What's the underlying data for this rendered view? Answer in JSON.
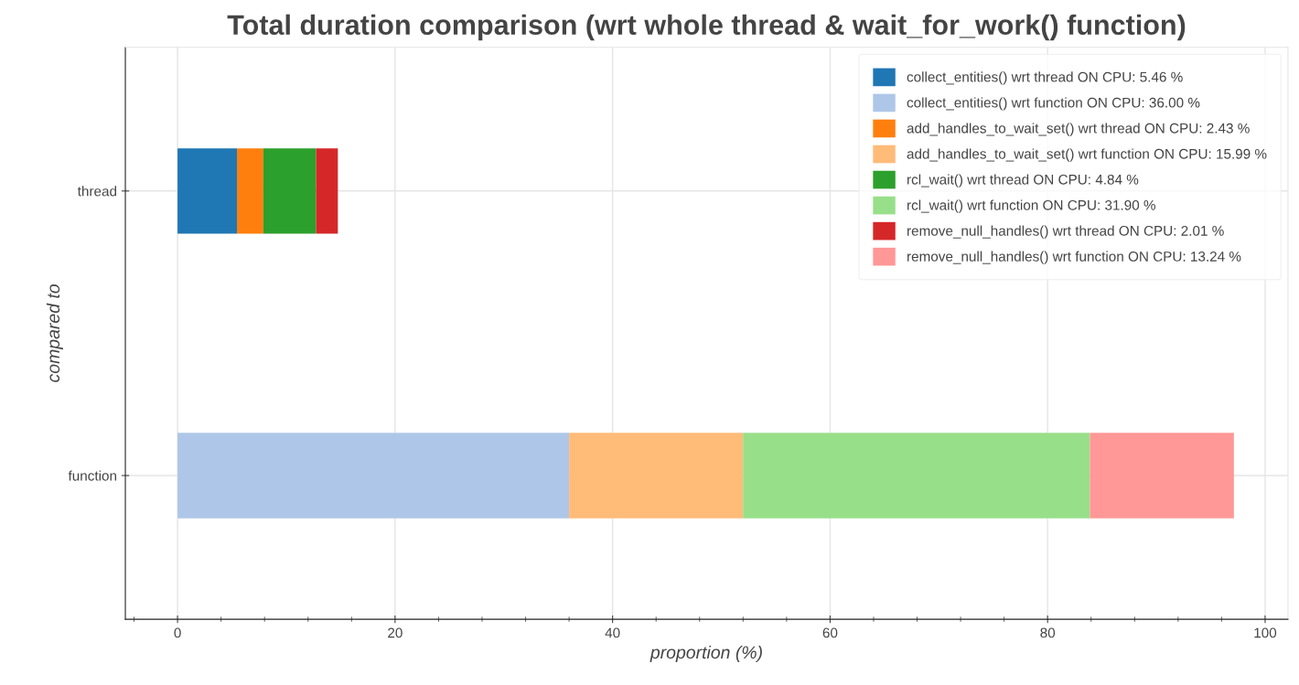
{
  "chart_data": {
    "type": "bar",
    "orientation": "horizontal",
    "stacked": true,
    "title": "Total duration comparison (wrt whole thread & wait_for_work() function)",
    "xlabel": "proportion (%)",
    "ylabel": "compared to",
    "categories": [
      "thread",
      "function"
    ],
    "xlim": [
      -4.8,
      102.1
    ],
    "xticks": [
      0,
      20,
      40,
      60,
      80,
      100
    ],
    "grid": true,
    "legend": "top right",
    "series": [
      {
        "name": "collect_entities() wrt thread ON CPU: 5.46 %",
        "color": "#1f77b4",
        "values": [
          5.46,
          null
        ]
      },
      {
        "name": "collect_entities() wrt function ON CPU: 36.00 %",
        "color": "#aec7e8",
        "values": [
          null,
          36.0
        ]
      },
      {
        "name": "add_handles_to_wait_set() wrt thread ON CPU: 2.43 %",
        "color": "#ff7f0e",
        "values": [
          2.43,
          null
        ]
      },
      {
        "name": "add_handles_to_wait_set() wrt function ON CPU: 15.99 %",
        "color": "#ffbb78",
        "values": [
          null,
          15.99
        ]
      },
      {
        "name": "rcl_wait() wrt thread ON CPU: 4.84 %",
        "color": "#2ca02c",
        "values": [
          4.84,
          null
        ]
      },
      {
        "name": "rcl_wait() wrt function ON CPU: 31.90 %",
        "color": "#98df8a",
        "values": [
          null,
          31.9
        ]
      },
      {
        "name": "remove_null_handles() wrt thread ON CPU: 2.01 %",
        "color": "#d62728",
        "values": [
          2.01,
          null
        ]
      },
      {
        "name": "remove_null_handles() wrt function ON CPU: 13.24 %",
        "color": "#ff9896",
        "values": [
          null,
          13.24
        ]
      }
    ]
  }
}
